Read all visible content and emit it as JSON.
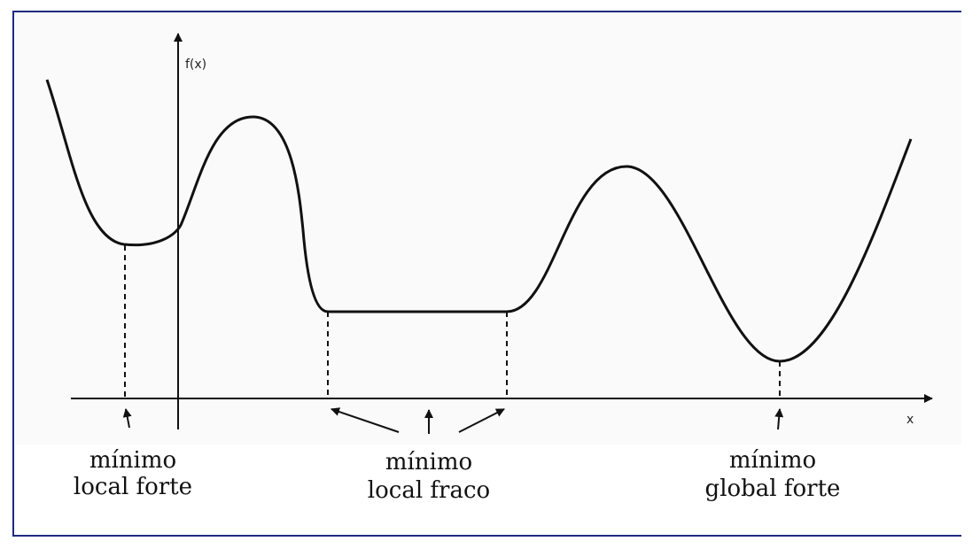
{
  "colors": {
    "frame": "#1f2a80",
    "panel": "#fafafa",
    "curve": "#111111"
  },
  "axes": {
    "y_label": "f(x)",
    "x_label": "x"
  },
  "captions": {
    "strong_local": {
      "line1": "mínimo",
      "line2": "local forte"
    },
    "weak_local": {
      "line1": "mínimo",
      "line2": "local fraco"
    },
    "global": {
      "line1": "mínimo",
      "line2": "global forte"
    }
  }
}
